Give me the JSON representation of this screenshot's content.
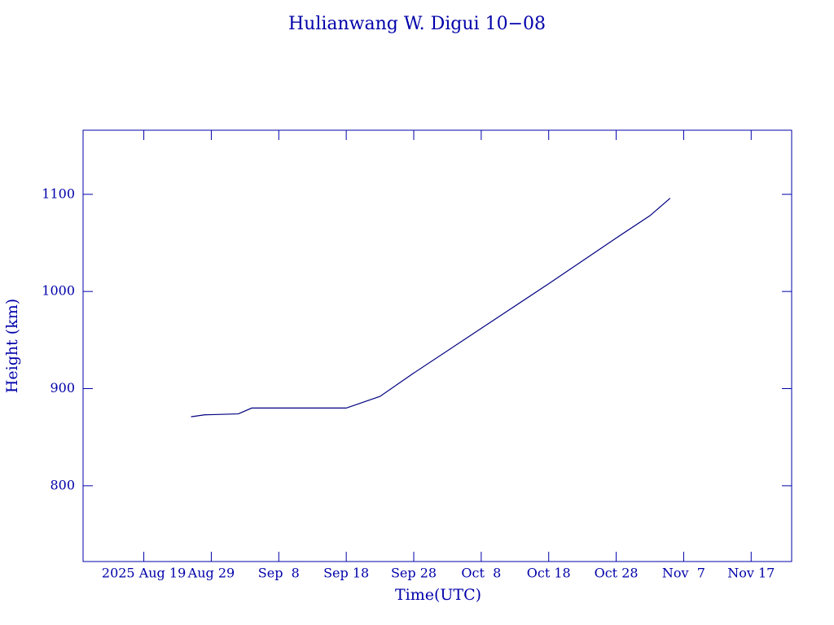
{
  "chart_data": {
    "type": "line",
    "title": "Hulianwang W. Digui 10−08",
    "x_label": "Time(UTC)",
    "y_label": "Height (km)",
    "x": [
      "2025-08-26",
      "2025-08-28",
      "2025-09-02",
      "2025-09-04",
      "2025-09-18",
      "2025-09-23",
      "2025-09-28",
      "2025-10-08",
      "2025-10-18",
      "2025-10-28",
      "2025-11-02",
      "2025-11-05"
    ],
    "series": [
      {
        "name": "Height",
        "color": "#000080",
        "values": [
          871,
          873,
          874,
          880,
          880,
          892,
          916,
          962,
          1008,
          1055,
          1078,
          1096
        ]
      }
    ],
    "xlim": [
      "2025-08-10",
      "2025-11-23"
    ],
    "xticks": [
      {
        "value": "2025-08-19",
        "label": "2025 Aug 19"
      },
      {
        "value": "2025-08-29",
        "label": "Aug 29"
      },
      {
        "value": "2025-09-08",
        "label": "Sep  8"
      },
      {
        "value": "2025-09-18",
        "label": "Sep 18"
      },
      {
        "value": "2025-09-28",
        "label": "Sep 28"
      },
      {
        "value": "2025-10-08",
        "label": "Oct  8"
      },
      {
        "value": "2025-10-18",
        "label": "Oct 18"
      },
      {
        "value": "2025-10-28",
        "label": "Oct 28"
      },
      {
        "value": "2025-11-07",
        "label": "Nov  7"
      },
      {
        "value": "2025-11-17",
        "label": "Nov 17"
      }
    ],
    "ylim": [
      722,
      1166
    ],
    "yticks": [
      800,
      900,
      1000,
      1100
    ],
    "axis_color": "#0000aa"
  }
}
